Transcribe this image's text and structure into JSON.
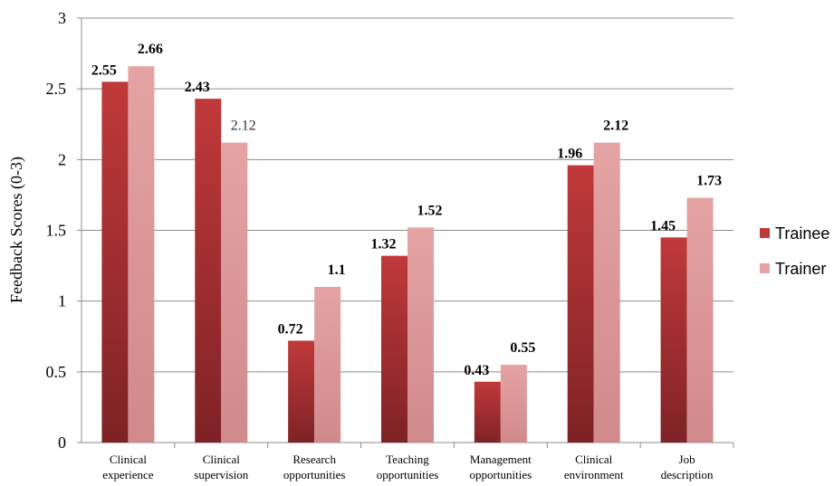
{
  "chart_data": {
    "type": "bar",
    "ylabel": "Feedback Scores (0-3)",
    "xlabel": "",
    "title": "",
    "ylim": [
      0,
      3
    ],
    "yticks": [
      "0",
      "0.5",
      "1",
      "1.5",
      "2",
      "2.5",
      "3"
    ],
    "grid": true,
    "legend_position": "right",
    "categories": [
      [
        "Clinical",
        "experience"
      ],
      [
        "Clinical",
        "supervision"
      ],
      [
        "Research",
        "opportunities"
      ],
      [
        "Teaching",
        "opportunities"
      ],
      [
        "Management",
        "opportunities"
      ],
      [
        "Clinical",
        "environment"
      ],
      [
        "Job",
        "description"
      ]
    ],
    "series": [
      {
        "name": "Trainee",
        "color_top": "#c0393a",
        "color_bottom": "#7e2225",
        "values": [
          2.55,
          2.43,
          0.72,
          1.32,
          0.43,
          1.96,
          1.45
        ],
        "labels": [
          "2.55",
          "2.43",
          "0.72",
          "1.32",
          "0.43",
          "1.96",
          "1.45"
        ]
      },
      {
        "name": "Trainer",
        "color_top": "#e5a3a3",
        "color_bottom": "#d08a8c",
        "values": [
          2.66,
          2.12,
          1.1,
          1.52,
          0.55,
          2.12,
          1.73
        ],
        "labels": [
          "2.66",
          "2.12",
          "1.1",
          "1.52",
          "0.55",
          "2.12",
          "1.73"
        ]
      }
    ]
  }
}
